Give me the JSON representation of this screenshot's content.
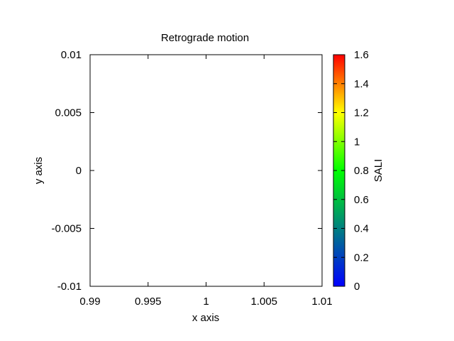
{
  "chart_data": {
    "type": "scatter",
    "title": "Retrograde motion",
    "xlabel": "x axis",
    "ylabel": "y axis",
    "xlim": [
      0.99,
      1.01
    ],
    "ylim": [
      -0.01,
      0.01
    ],
    "x_ticks": [
      0.99,
      0.995,
      1,
      1.005,
      1.01
    ],
    "x_tick_labels": [
      "0.99",
      "0.995",
      "1",
      "1.005",
      "1.01"
    ],
    "y_ticks": [
      -0.01,
      -0.005,
      0,
      0.005,
      0.01
    ],
    "y_tick_labels": [
      "-0.01",
      "-0.005",
      "0",
      "0.005",
      "0.01"
    ],
    "grid": false,
    "points": [],
    "colorbar": {
      "label": "SALI",
      "range": [
        0,
        1.6
      ],
      "ticks": [
        0,
        0.2,
        0.4,
        0.6,
        0.8,
        1,
        1.2,
        1.4,
        1.6
      ],
      "tick_labels": [
        "0",
        "0.2",
        "0.4",
        "0.6",
        "0.8",
        "1",
        "1.2",
        "1.4",
        "1.6"
      ],
      "colors": [
        "#0000ff",
        "#008080",
        "#00ff00",
        "#ffff00",
        "#ff0000"
      ]
    }
  }
}
